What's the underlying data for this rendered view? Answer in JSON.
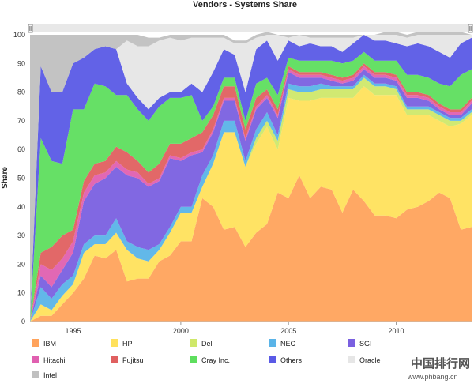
{
  "chart_data": {
    "type": "area",
    "stacked": true,
    "title": "Vendors - Systems Share",
    "xlabel": "",
    "ylabel": "Share",
    "ylim": [
      0,
      100
    ],
    "yticks": [
      0,
      10,
      20,
      30,
      40,
      50,
      60,
      70,
      80,
      90,
      100
    ],
    "xlim": [
      1993,
      2013.5
    ],
    "xticks": [
      1995,
      2000,
      2005,
      2010
    ],
    "grid": false,
    "legend_position": "bottom",
    "x": [
      1993,
      1993.5,
      1994,
      1994.5,
      1995,
      1995.5,
      1996,
      1996.5,
      1997,
      1997.5,
      1998,
      1998.5,
      1999,
      1999.5,
      2000,
      2000.5,
      2001,
      2001.5,
      2002,
      2002.5,
      2003,
      2003.5,
      2004,
      2004.5,
      2005,
      2005.5,
      2006,
      2006.5,
      2007,
      2007.5,
      2008,
      2008.5,
      2009,
      2009.5,
      2010,
      2010.5,
      2011,
      2011.5,
      2012,
      2012.5,
      2013,
      2013.5
    ],
    "series": [
      {
        "name": "IBM",
        "color": "#ffa35c",
        "values": [
          0,
          2,
          2,
          6,
          10,
          15,
          23,
          22,
          25,
          14,
          15,
          15,
          21,
          23,
          28,
          28,
          43,
          40,
          32,
          33,
          26,
          31,
          34,
          45,
          43,
          51,
          43,
          47,
          46,
          38,
          46,
          42,
          37,
          37,
          36,
          39,
          40,
          42,
          45,
          43,
          32,
          33
        ]
      },
      {
        "name": "HP",
        "color": "#ffe15c",
        "values": [
          0,
          4,
          2,
          3,
          3,
          9,
          4,
          5,
          6,
          11,
          7,
          6,
          4,
          8,
          10,
          10,
          4,
          15,
          34,
          33,
          28,
          31,
          34,
          15,
          35,
          26,
          34,
          31,
          32,
          40,
          32,
          40,
          42,
          42,
          43,
          33,
          32,
          30,
          25,
          25,
          37,
          39
        ]
      },
      {
        "name": "Dell",
        "color": "#cfe86a",
        "values": [
          0,
          0,
          0,
          0,
          0,
          0,
          0,
          0,
          0,
          0,
          0,
          0,
          0,
          0,
          0,
          0,
          0,
          0,
          0,
          0,
          0,
          2,
          2,
          3,
          3,
          3,
          3,
          3,
          3,
          3,
          3,
          3,
          3,
          3,
          2,
          2,
          2,
          2,
          2,
          2,
          1,
          1
        ]
      },
      {
        "name": "NEC",
        "color": "#5ab4e8",
        "values": [
          0,
          6,
          4,
          4,
          3,
          3,
          3,
          3,
          5,
          3,
          4,
          4,
          2,
          2,
          2,
          2,
          4,
          3,
          4,
          4,
          2,
          3,
          3,
          2,
          2,
          2,
          2,
          2,
          1,
          1,
          1,
          1,
          1,
          1,
          1,
          1,
          1,
          1,
          1,
          1,
          1,
          1
        ]
      },
      {
        "name": "SGI",
        "color": "#7a60e0",
        "values": [
          0,
          4,
          4,
          5,
          8,
          15,
          18,
          20,
          18,
          23,
          24,
          22,
          22,
          24,
          16,
          18,
          8,
          8,
          7,
          7,
          7,
          7,
          5,
          6,
          4,
          3,
          3,
          2,
          2,
          1,
          2,
          2,
          2,
          2,
          2,
          3,
          3,
          2,
          1,
          1,
          1,
          2
        ]
      },
      {
        "name": "Hitachi",
        "color": "#e060b0",
        "values": [
          0,
          4,
          6,
          4,
          4,
          3,
          3,
          2,
          2,
          2,
          2,
          1,
          1,
          1,
          1,
          1,
          1,
          1,
          1,
          1,
          1,
          1,
          1,
          1,
          1,
          1,
          1,
          1,
          1,
          1,
          1,
          1,
          1,
          1,
          1,
          1,
          1,
          1,
          1,
          1,
          1,
          1
        ]
      },
      {
        "name": "Fujitsu",
        "color": "#e06060",
        "values": [
          0,
          4,
          8,
          8,
          4,
          4,
          4,
          4,
          5,
          6,
          4,
          4,
          5,
          4,
          5,
          5,
          6,
          5,
          4,
          4,
          3,
          3,
          2,
          2,
          1,
          1,
          1,
          1,
          1,
          1,
          1,
          1,
          1,
          1,
          1,
          1,
          1,
          1,
          1,
          1,
          1,
          1
        ]
      },
      {
        "name": "Cray Inc.",
        "color": "#5ede5e",
        "values": [
          0,
          40,
          30,
          25,
          42,
          25,
          28,
          26,
          18,
          20,
          18,
          18,
          20,
          16,
          16,
          15,
          4,
          3,
          3,
          3,
          3,
          5,
          4,
          5,
          3,
          4,
          4,
          4,
          5,
          5,
          5,
          4,
          4,
          4,
          5,
          6,
          6,
          6,
          7,
          8,
          12,
          10
        ]
      },
      {
        "name": "Others",
        "color": "#5a5ae6",
        "values": [
          0,
          25,
          24,
          25,
          16,
          18,
          12,
          14,
          16,
          4,
          4,
          4,
          3,
          2,
          2,
          4,
          10,
          12,
          10,
          8,
          10,
          12,
          13,
          12,
          6,
          5,
          6,
          5,
          5,
          4,
          6,
          6,
          7,
          7,
          6,
          10,
          11,
          11,
          11,
          10,
          11,
          11
        ]
      },
      {
        "name": "Oracle",
        "color": "#e6e6e6",
        "values": [
          0,
          0,
          0,
          0,
          0,
          0,
          0,
          0,
          0,
          15,
          18,
          22,
          20,
          19,
          18,
          16,
          19,
          12,
          4,
          4,
          17,
          4,
          2,
          9,
          1,
          4,
          2,
          3,
          3,
          5,
          2,
          0,
          2,
          2,
          3,
          3,
          3,
          4,
          6,
          8,
          3,
          1
        ]
      },
      {
        "name": "Intel",
        "color": "#c0c0c0",
        "values": [
          100,
          11,
          20,
          20,
          10,
          8,
          5,
          4,
          5,
          2,
          4,
          3,
          1,
          1,
          2,
          1,
          1,
          1,
          1,
          1,
          1,
          1,
          1,
          0,
          1,
          0,
          1,
          1,
          1,
          1,
          1,
          0,
          0,
          1,
          1,
          1,
          1,
          1,
          1,
          1,
          1,
          0
        ]
      }
    ]
  },
  "watermark": {
    "cn": "中国排行网",
    "url": "www.phbang.cn"
  }
}
